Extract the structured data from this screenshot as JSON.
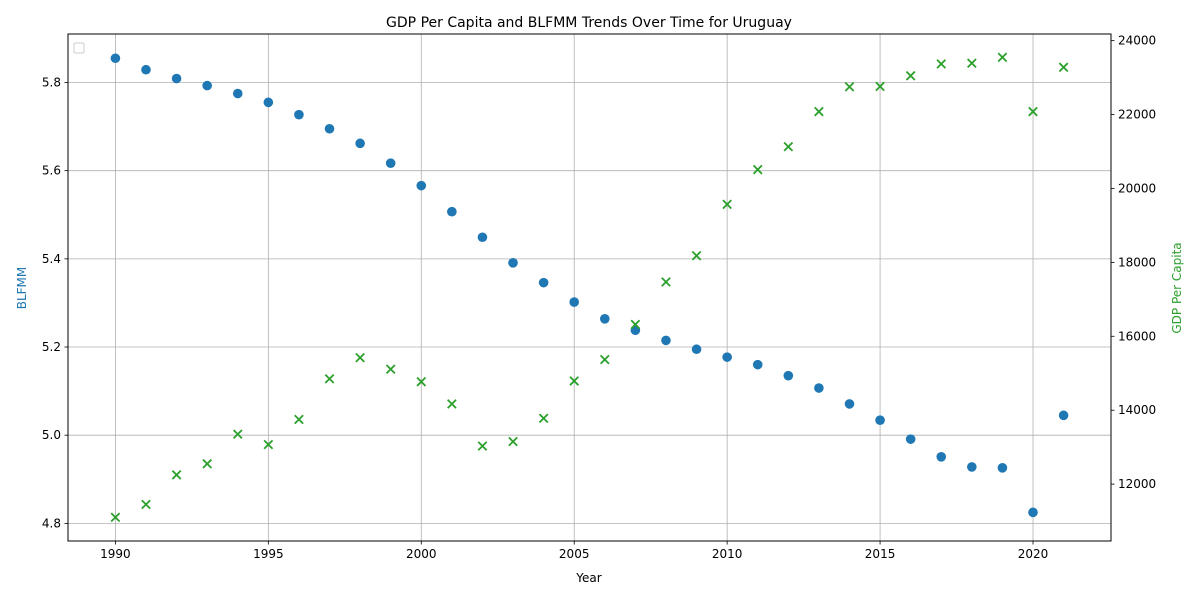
{
  "chart_data": {
    "type": "scatter",
    "title": "GDP Per Capita and BLFMM Trends Over Time for Uruguay",
    "xlabel": "Year",
    "ylabel_left": "BLFMM",
    "ylabel_right": "GDP Per Capita",
    "xlim": [
      1988.45,
      2022.55
    ],
    "ylim_left": [
      4.76,
      5.91
    ],
    "ylim_right": [
      10460,
      24180
    ],
    "x_ticks": [
      1990,
      1995,
      2000,
      2005,
      2010,
      2015,
      2020
    ],
    "y_left_ticks": [
      4.8,
      5.0,
      5.2,
      5.4,
      5.6,
      5.8
    ],
    "y_right_ticks": [
      12000,
      14000,
      16000,
      18000,
      20000,
      22000,
      24000
    ],
    "grid": true,
    "legend": "top-left (empty)",
    "colors": {
      "blfmm": "#1f77b4",
      "gdp": "#2ca02c"
    },
    "x": [
      1990,
      1991,
      1992,
      1993,
      1994,
      1995,
      1996,
      1997,
      1998,
      1999,
      2000,
      2001,
      2002,
      2003,
      2004,
      2005,
      2006,
      2007,
      2008,
      2009,
      2010,
      2011,
      2012,
      2013,
      2014,
      2015,
      2016,
      2017,
      2018,
      2019,
      2020,
      2021
    ],
    "series": [
      {
        "axis": "left",
        "marker": "circle",
        "values": [
          5.855,
          5.829,
          5.809,
          5.793,
          5.775,
          5.755,
          5.727,
          5.695,
          5.662,
          5.617,
          5.566,
          5.507,
          5.449,
          5.391,
          5.346,
          5.302,
          5.264,
          5.238,
          5.215,
          5.195,
          5.177,
          5.16,
          5.135,
          5.107,
          5.071,
          5.034,
          4.991,
          4.951,
          4.928,
          4.926,
          4.825,
          5.045
        ]
      },
      {
        "axis": "right",
        "marker": "x",
        "values": [
          11100,
          11450,
          12250,
          12550,
          13350,
          13070,
          13750,
          14850,
          15420,
          15110,
          14770,
          14170,
          13030,
          13150,
          13780,
          14790,
          15370,
          16320,
          17470,
          18180,
          19570,
          20510,
          21130,
          22080,
          22750,
          22760,
          23050,
          23370,
          23390,
          23550,
          22080,
          23280
        ]
      }
    ]
  }
}
